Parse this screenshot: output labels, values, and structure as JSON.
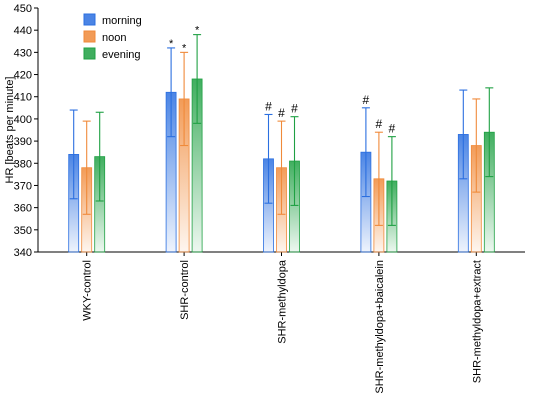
{
  "chart_data": {
    "type": "bar",
    "title": "",
    "xlabel": "",
    "ylabel": "HR [beats per minute]",
    "ylim": [
      340,
      450
    ],
    "yticks": [
      340,
      350,
      360,
      370,
      380,
      390,
      400,
      410,
      420,
      430,
      440,
      450
    ],
    "grid": false,
    "legend_position": "top-left",
    "categories": [
      "WKY-control",
      "SHR-control",
      "SHR-methyldopa",
      "SHR-methyldopa+baicalein",
      "SHR-methyldopa+extract"
    ],
    "series": [
      {
        "name": "morning",
        "color": "#2b6fe0",
        "values": [
          384,
          412,
          382,
          385,
          393
        ],
        "error": [
          20,
          20,
          20,
          20,
          20
        ],
        "annotations": [
          "",
          "*",
          "#",
          "#",
          ""
        ]
      },
      {
        "name": "noon",
        "color": "#f08a3a",
        "values": [
          378,
          409,
          378,
          373,
          388
        ],
        "error": [
          21,
          21,
          21,
          21,
          21
        ],
        "annotations": [
          "",
          "*",
          "#",
          "#",
          ""
        ]
      },
      {
        "name": "evening",
        "color": "#1fa043",
        "values": [
          383,
          418,
          381,
          372,
          394
        ],
        "error": [
          20,
          20,
          20,
          20,
          20
        ],
        "annotations": [
          "",
          "*",
          "#",
          "#",
          ""
        ]
      }
    ]
  }
}
